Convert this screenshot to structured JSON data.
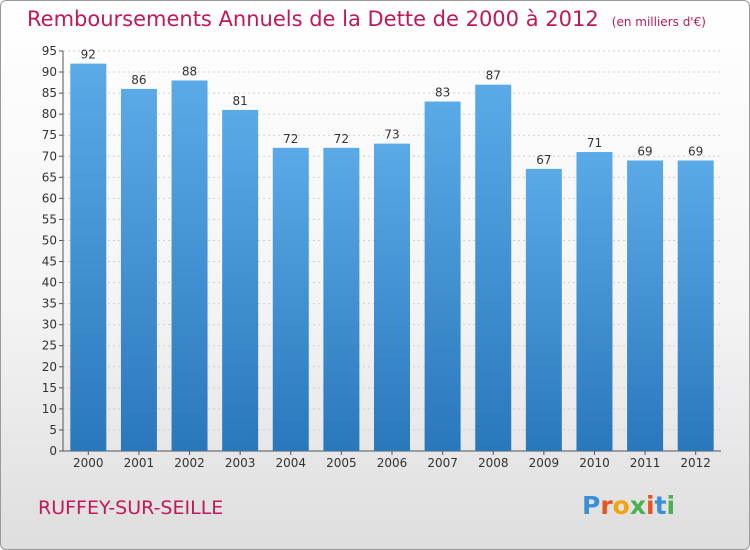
{
  "header": {
    "title": "Remboursements Annuels de la Dette de 2000 à 2012",
    "subtitle": "(en milliers d'€)"
  },
  "footer": {
    "town": "RUFFEY-SUR-SEILLE",
    "brand_letters": [
      "P",
      "r",
      "o",
      "x",
      "i",
      "t",
      "i"
    ]
  },
  "colors": {
    "accent": "#c2185b",
    "bar_top": "#5aaae8",
    "bar_bottom": "#2a78bc",
    "brand": [
      "#3b8fd6",
      "#e8541e",
      "#f2a30f",
      "#4caf50",
      "#e8541e",
      "#3b8fd6",
      "#4caf50"
    ]
  },
  "chart_data": {
    "type": "bar",
    "categories": [
      "2000",
      "2001",
      "2002",
      "2003",
      "2004",
      "2005",
      "2006",
      "2007",
      "2008",
      "2009",
      "2010",
      "2011",
      "2012"
    ],
    "values": [
      92,
      86,
      88,
      81,
      72,
      72,
      73,
      83,
      87,
      67,
      71,
      69,
      69
    ],
    "ylim": [
      0,
      95
    ],
    "yticks": [
      0,
      5,
      10,
      15,
      20,
      25,
      30,
      35,
      40,
      45,
      50,
      55,
      60,
      65,
      70,
      75,
      80,
      85,
      90,
      95
    ],
    "grid": true,
    "data_labels": true
  }
}
